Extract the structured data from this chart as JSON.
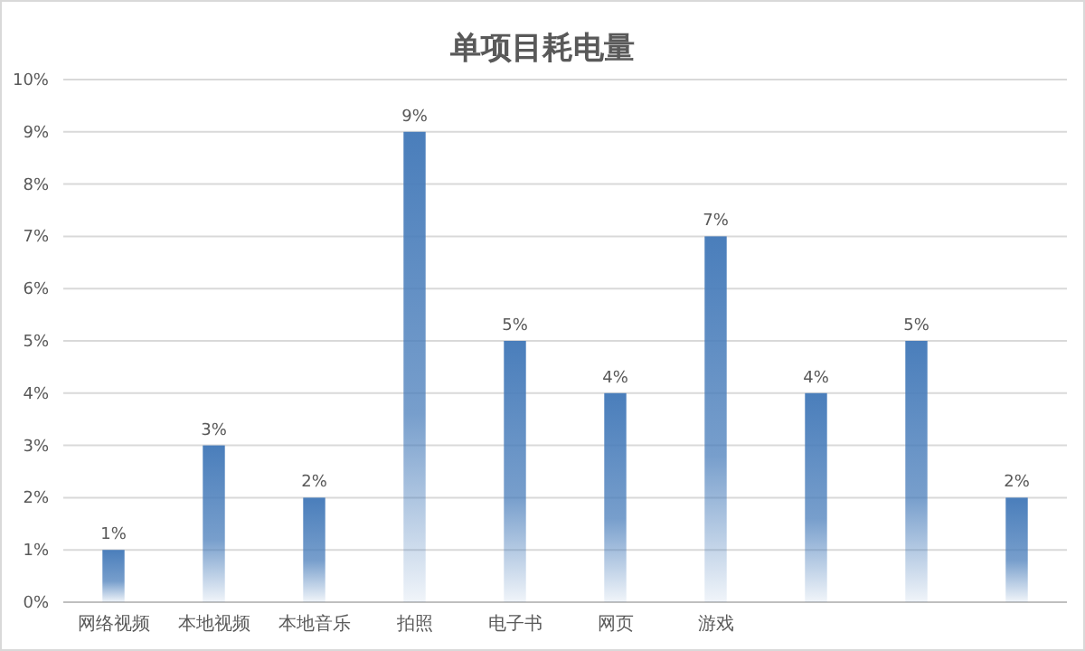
{
  "chart_data": {
    "type": "bar",
    "title": "单项目耗电量",
    "categories": [
      "网络视频",
      "本地视频",
      "本地音乐",
      "拍照",
      "电子书",
      "网页",
      "游戏",
      null,
      null,
      null
    ],
    "values": [
      1,
      3,
      2,
      9,
      5,
      4,
      7,
      4,
      5,
      2
    ],
    "value_labels": [
      "1%",
      "3%",
      "2%",
      "9%",
      "5%",
      "4%",
      "7%",
      "4%",
      "5%",
      "2%"
    ],
    "color": "#4a7ebb",
    "ylim": [
      0,
      10
    ],
    "yticks": [
      {
        "value": 0,
        "label": "0%"
      },
      {
        "value": 1,
        "label": "1%"
      },
      {
        "value": 2,
        "label": "2%"
      },
      {
        "value": 3,
        "label": "3%"
      },
      {
        "value": 4,
        "label": "4%"
      },
      {
        "value": 5,
        "label": "5%"
      },
      {
        "value": 6,
        "label": "6%"
      },
      {
        "value": 7,
        "label": "7%"
      },
      {
        "value": 8,
        "label": "8%"
      },
      {
        "value": 9,
        "label": "9%"
      },
      {
        "value": 10,
        "label": "10%"
      }
    ],
    "grid": "y"
  }
}
